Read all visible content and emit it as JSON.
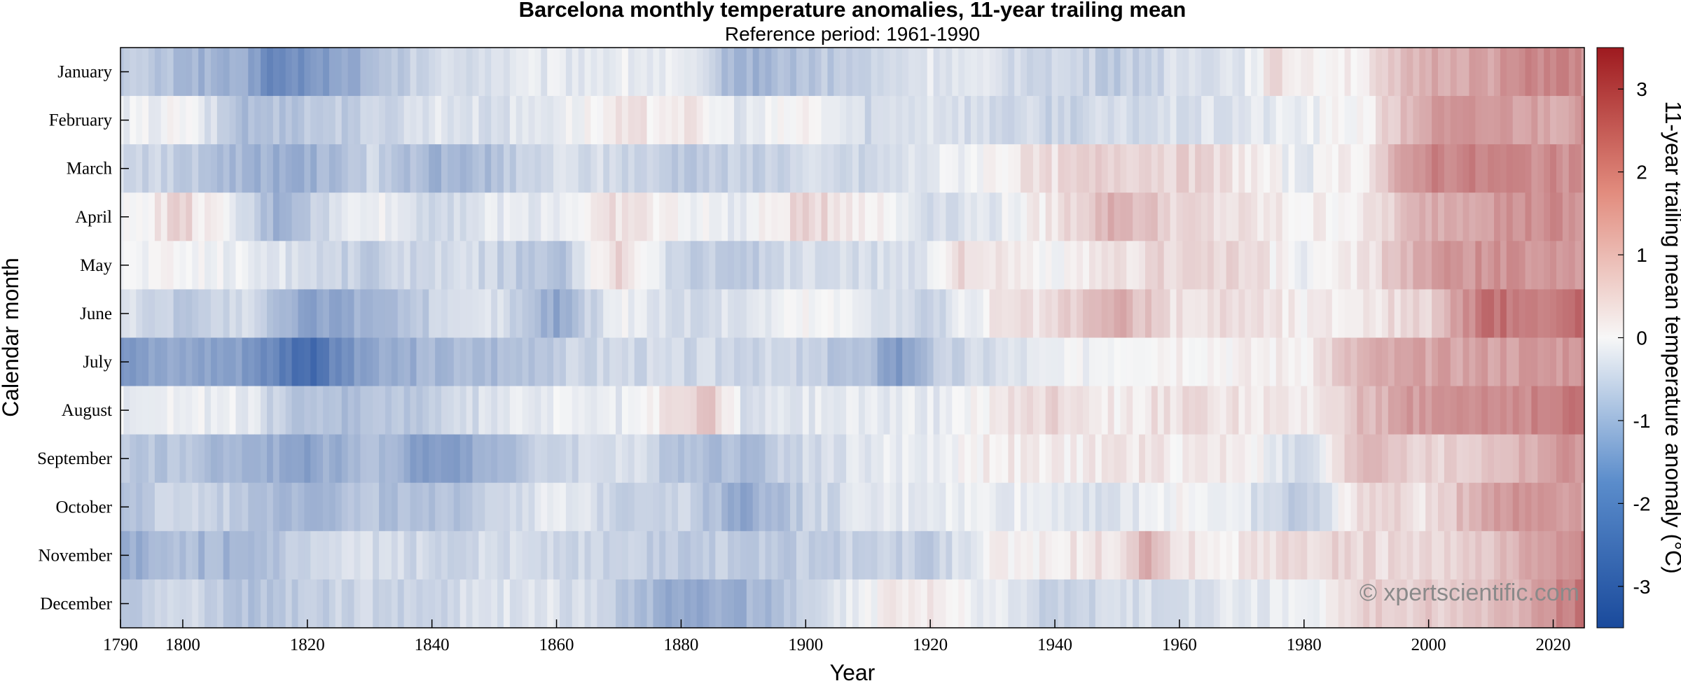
{
  "chart_data": {
    "type": "heatmap",
    "title": "Barcelona monthly temperature anomalies, 11-year trailing mean",
    "subtitle": "Reference period: 1961-1990",
    "xlabel": "Year",
    "ylabel": "Calendar month",
    "colorbar_label": "11-year trailing mean temperature anomaly (°C)",
    "colorbar_range": [
      -3.5,
      3.5
    ],
    "colorbar_ticks": [
      -3,
      -2,
      -1,
      0,
      1,
      2,
      3
    ],
    "colormap": "diverging blue-white-red",
    "color_low": "#1a4a9c",
    "color_mid": "#f7f7f7",
    "color_high": "#9e1a1f",
    "xlim": [
      1790,
      2025
    ],
    "x_ticks": [
      1790,
      1800,
      1820,
      1840,
      1860,
      1880,
      1900,
      1920,
      1940,
      1960,
      1980,
      2000,
      2020
    ],
    "y_categories": [
      "January",
      "February",
      "March",
      "April",
      "May",
      "June",
      "July",
      "August",
      "September",
      "October",
      "November",
      "December"
    ],
    "years_start": 1790,
    "years_end": 2025,
    "anomaly_keyframes": {
      "January": [
        [
          1790,
          -0.8
        ],
        [
          1800,
          -1.2
        ],
        [
          1810,
          -1.6
        ],
        [
          1815,
          -2.3
        ],
        [
          1820,
          -2.0
        ],
        [
          1830,
          -1.3
        ],
        [
          1840,
          -0.6
        ],
        [
          1850,
          -0.4
        ],
        [
          1860,
          -0.3
        ],
        [
          1870,
          -0.2
        ],
        [
          1880,
          -0.3
        ],
        [
          1890,
          -1.4
        ],
        [
          1900,
          -1.0
        ],
        [
          1910,
          -0.8
        ],
        [
          1920,
          -0.3
        ],
        [
          1930,
          -0.5
        ],
        [
          1940,
          -0.6
        ],
        [
          1950,
          -0.9
        ],
        [
          1960,
          -0.5
        ],
        [
          1970,
          -0.3
        ],
        [
          1975,
          0.4
        ],
        [
          1980,
          0.2
        ],
        [
          1990,
          0.2
        ],
        [
          2000,
          1.2
        ],
        [
          2010,
          1.4
        ],
        [
          2020,
          1.9
        ],
        [
          2025,
          1.6
        ]
      ],
      "February": [
        [
          1790,
          -0.3
        ],
        [
          1800,
          0.0
        ],
        [
          1810,
          -1.2
        ],
        [
          1820,
          -0.9
        ],
        [
          1830,
          -0.8
        ],
        [
          1840,
          -0.3
        ],
        [
          1850,
          -0.5
        ],
        [
          1860,
          -0.2
        ],
        [
          1870,
          0.2
        ],
        [
          1880,
          0.3
        ],
        [
          1890,
          -0.4
        ],
        [
          1900,
          0.1
        ],
        [
          1910,
          -0.6
        ],
        [
          1920,
          -0.3
        ],
        [
          1930,
          -0.6
        ],
        [
          1940,
          -0.7
        ],
        [
          1950,
          -0.6
        ],
        [
          1960,
          -0.5
        ],
        [
          1970,
          -0.4
        ],
        [
          1980,
          -0.2
        ],
        [
          1990,
          0.1
        ],
        [
          2000,
          1.4
        ],
        [
          2010,
          1.5
        ],
        [
          2020,
          1.3
        ],
        [
          2025,
          1.6
        ]
      ],
      "March": [
        [
          1790,
          -0.5
        ],
        [
          1800,
          -0.9
        ],
        [
          1810,
          -1.3
        ],
        [
          1820,
          -1.5
        ],
        [
          1830,
          -0.7
        ],
        [
          1840,
          -1.4
        ],
        [
          1850,
          -1.1
        ],
        [
          1860,
          -0.5
        ],
        [
          1870,
          -0.6
        ],
        [
          1880,
          -0.9
        ],
        [
          1890,
          -0.8
        ],
        [
          1900,
          -0.6
        ],
        [
          1910,
          -0.7
        ],
        [
          1920,
          -0.3
        ],
        [
          1930,
          0.1
        ],
        [
          1940,
          0.4
        ],
        [
          1950,
          0.7
        ],
        [
          1960,
          0.6
        ],
        [
          1970,
          0.3
        ],
        [
          1980,
          -0.3
        ],
        [
          1990,
          0.3
        ],
        [
          2000,
          1.9
        ],
        [
          2010,
          1.8
        ],
        [
          2020,
          1.7
        ],
        [
          2025,
          1.5
        ]
      ],
      "April": [
        [
          1790,
          -0.2
        ],
        [
          1800,
          0.6
        ],
        [
          1810,
          -0.6
        ],
        [
          1815,
          -1.4
        ],
        [
          1820,
          -0.9
        ],
        [
          1830,
          0.0
        ],
        [
          1840,
          -0.6
        ],
        [
          1850,
          -0.3
        ],
        [
          1860,
          -0.2
        ],
        [
          1870,
          0.4
        ],
        [
          1880,
          0.0
        ],
        [
          1890,
          -0.3
        ],
        [
          1900,
          0.6
        ],
        [
          1910,
          0.2
        ],
        [
          1920,
          -0.5
        ],
        [
          1930,
          -0.3
        ],
        [
          1940,
          0.3
        ],
        [
          1950,
          1.2
        ],
        [
          1960,
          0.5
        ],
        [
          1970,
          0.3
        ],
        [
          1980,
          0.1
        ],
        [
          1990,
          0.2
        ],
        [
          2000,
          1.2
        ],
        [
          2010,
          1.5
        ],
        [
          2020,
          1.7
        ],
        [
          2025,
          1.4
        ]
      ],
      "May": [
        [
          1790,
          -0.1
        ],
        [
          1800,
          0.0
        ],
        [
          1810,
          -0.2
        ],
        [
          1820,
          -0.5
        ],
        [
          1830,
          -0.9
        ],
        [
          1840,
          -0.5
        ],
        [
          1850,
          -0.7
        ],
        [
          1860,
          -1.2
        ],
        [
          1870,
          0.7
        ],
        [
          1880,
          -0.8
        ],
        [
          1890,
          -0.9
        ],
        [
          1900,
          -0.5
        ],
        [
          1910,
          -0.6
        ],
        [
          1920,
          -0.3
        ],
        [
          1925,
          0.6
        ],
        [
          1930,
          0.2
        ],
        [
          1940,
          -0.1
        ],
        [
          1950,
          0.3
        ],
        [
          1960,
          0.6
        ],
        [
          1970,
          0.5
        ],
        [
          1980,
          -0.2
        ],
        [
          1990,
          0.3
        ],
        [
          2000,
          1.4
        ],
        [
          2010,
          1.6
        ],
        [
          2020,
          1.5
        ],
        [
          2025,
          1.6
        ]
      ],
      "June": [
        [
          1790,
          -0.4
        ],
        [
          1800,
          -0.9
        ],
        [
          1810,
          -0.6
        ],
        [
          1820,
          -1.8
        ],
        [
          1830,
          -1.3
        ],
        [
          1840,
          -0.8
        ],
        [
          1850,
          -0.4
        ],
        [
          1860,
          -1.6
        ],
        [
          1870,
          0.0
        ],
        [
          1880,
          -0.6
        ],
        [
          1890,
          -0.4
        ],
        [
          1900,
          0.0
        ],
        [
          1910,
          -0.2
        ],
        [
          1920,
          -0.8
        ],
        [
          1930,
          0.2
        ],
        [
          1940,
          0.4
        ],
        [
          1950,
          1.2
        ],
        [
          1960,
          0.3
        ],
        [
          1970,
          0.5
        ],
        [
          1980,
          0.1
        ],
        [
          1990,
          0.3
        ],
        [
          2000,
          0.6
        ],
        [
          2010,
          2.2
        ],
        [
          2020,
          1.8
        ],
        [
          2025,
          2.5
        ]
      ],
      "July": [
        [
          1790,
          -1.8
        ],
        [
          1800,
          -1.6
        ],
        [
          1810,
          -1.8
        ],
        [
          1820,
          -2.8
        ],
        [
          1830,
          -1.7
        ],
        [
          1840,
          -1.3
        ],
        [
          1850,
          -1.2
        ],
        [
          1860,
          -0.8
        ],
        [
          1870,
          -0.6
        ],
        [
          1880,
          -0.7
        ],
        [
          1890,
          -0.6
        ],
        [
          1900,
          -0.8
        ],
        [
          1910,
          -1.2
        ],
        [
          1915,
          -1.9
        ],
        [
          1920,
          -1.0
        ],
        [
          1930,
          -0.5
        ],
        [
          1940,
          -0.3
        ],
        [
          1950,
          0.1
        ],
        [
          1960,
          0.2
        ],
        [
          1970,
          0.1
        ],
        [
          1980,
          0.2
        ],
        [
          1990,
          1.1
        ],
        [
          2000,
          1.3
        ],
        [
          2010,
          1.4
        ],
        [
          2020,
          1.5
        ],
        [
          2025,
          1.7
        ]
      ],
      "August": [
        [
          1790,
          -0.2
        ],
        [
          1800,
          -0.1
        ],
        [
          1810,
          -0.3
        ],
        [
          1820,
          -1.2
        ],
        [
          1830,
          -1.0
        ],
        [
          1840,
          -0.9
        ],
        [
          1850,
          -0.4
        ],
        [
          1860,
          -0.2
        ],
        [
          1870,
          -0.3
        ],
        [
          1880,
          0.4
        ],
        [
          1885,
          0.9
        ],
        [
          1890,
          -0.5
        ],
        [
          1900,
          -0.3
        ],
        [
          1910,
          -0.2
        ],
        [
          1920,
          -0.3
        ],
        [
          1930,
          0.2
        ],
        [
          1940,
          0.6
        ],
        [
          1950,
          0.2
        ],
        [
          1960,
          0.4
        ],
        [
          1970,
          0.3
        ],
        [
          1980,
          0.1
        ],
        [
          1990,
          1.0
        ],
        [
          2000,
          1.6
        ],
        [
          2010,
          1.7
        ],
        [
          2020,
          1.8
        ],
        [
          2025,
          2.1
        ]
      ],
      "September": [
        [
          1790,
          -1.0
        ],
        [
          1800,
          -1.0
        ],
        [
          1810,
          -1.4
        ],
        [
          1820,
          -1.7
        ],
        [
          1830,
          -1.1
        ],
        [
          1840,
          -1.9
        ],
        [
          1850,
          -1.3
        ],
        [
          1860,
          -0.7
        ],
        [
          1870,
          -0.4
        ],
        [
          1880,
          -1.0
        ],
        [
          1890,
          -1.2
        ],
        [
          1900,
          -0.6
        ],
        [
          1910,
          -0.3
        ],
        [
          1920,
          -0.2
        ],
        [
          1930,
          0.2
        ],
        [
          1940,
          0.1
        ],
        [
          1950,
          0.3
        ],
        [
          1960,
          0.2
        ],
        [
          1970,
          0.3
        ],
        [
          1980,
          -0.8
        ],
        [
          1990,
          1.2
        ],
        [
          2000,
          0.5
        ],
        [
          2010,
          0.8
        ],
        [
          2020,
          1.4
        ],
        [
          2025,
          1.6
        ]
      ],
      "October": [
        [
          1790,
          -1.2
        ],
        [
          1800,
          -0.6
        ],
        [
          1810,
          -0.9
        ],
        [
          1820,
          -1.3
        ],
        [
          1830,
          -1.0
        ],
        [
          1840,
          -1.3
        ],
        [
          1850,
          -0.6
        ],
        [
          1860,
          -0.3
        ],
        [
          1870,
          -0.7
        ],
        [
          1880,
          -0.6
        ],
        [
          1890,
          -1.6
        ],
        [
          1900,
          -0.8
        ],
        [
          1910,
          -0.4
        ],
        [
          1920,
          -0.2
        ],
        [
          1930,
          -0.2
        ],
        [
          1940,
          -0.2
        ],
        [
          1950,
          -0.5
        ],
        [
          1960,
          0.1
        ],
        [
          1970,
          -0.3
        ],
        [
          1980,
          -1.0
        ],
        [
          1990,
          0.6
        ],
        [
          2000,
          0.3
        ],
        [
          2010,
          1.5
        ],
        [
          2020,
          1.6
        ],
        [
          2025,
          1.4
        ]
      ],
      "November": [
        [
          1790,
          -1.6
        ],
        [
          1800,
          -1.2
        ],
        [
          1810,
          -1.4
        ],
        [
          1820,
          -0.8
        ],
        [
          1830,
          -0.5
        ],
        [
          1840,
          -0.7
        ],
        [
          1850,
          -0.5
        ],
        [
          1860,
          -0.6
        ],
        [
          1870,
          -0.8
        ],
        [
          1880,
          -0.9
        ],
        [
          1890,
          -0.8
        ],
        [
          1900,
          -0.9
        ],
        [
          1910,
          -0.7
        ],
        [
          1920,
          -0.9
        ],
        [
          1930,
          0.0
        ],
        [
          1940,
          0.2
        ],
        [
          1950,
          0.4
        ],
        [
          1955,
          1.2
        ],
        [
          1960,
          0.3
        ],
        [
          1970,
          0.2
        ],
        [
          1980,
          0.5
        ],
        [
          1990,
          0.5
        ],
        [
          2000,
          0.4
        ],
        [
          2010,
          0.7
        ],
        [
          2020,
          1.5
        ],
        [
          2025,
          1.9
        ]
      ],
      "December": [
        [
          1790,
          -0.9
        ],
        [
          1800,
          -0.6
        ],
        [
          1810,
          -1.1
        ],
        [
          1820,
          -0.8
        ],
        [
          1830,
          -0.7
        ],
        [
          1840,
          -0.7
        ],
        [
          1850,
          -0.4
        ],
        [
          1860,
          -0.4
        ],
        [
          1870,
          -0.9
        ],
        [
          1880,
          -1.6
        ],
        [
          1890,
          -1.4
        ],
        [
          1900,
          -0.9
        ],
        [
          1910,
          -0.1
        ],
        [
          1915,
          0.4
        ],
        [
          1920,
          0.2
        ],
        [
          1930,
          -0.2
        ],
        [
          1940,
          -0.8
        ],
        [
          1950,
          -0.6
        ],
        [
          1960,
          -0.4
        ],
        [
          1970,
          -0.3
        ],
        [
          1980,
          -0.2
        ],
        [
          1990,
          0.6
        ],
        [
          2000,
          0.7
        ],
        [
          2010,
          0.8
        ],
        [
          2020,
          1.6
        ],
        [
          2025,
          2.2
        ]
      ]
    }
  },
  "watermark": "© xpertscientific.com"
}
